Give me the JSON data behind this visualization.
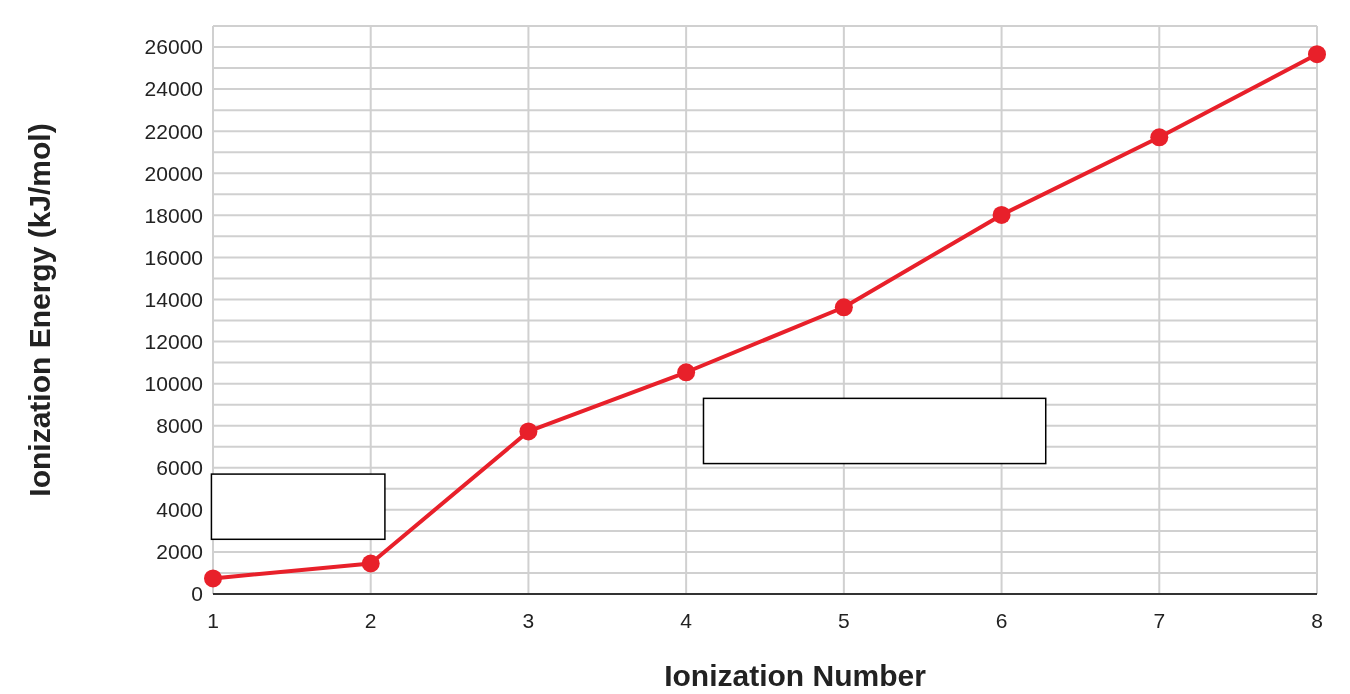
{
  "chart_data": {
    "type": "line",
    "xlabel": "Ionization Number",
    "ylabel": "Ionization Energy (kJ/mol)",
    "x": [
      1,
      2,
      3,
      4,
      5,
      6,
      7,
      8
    ],
    "series": [
      {
        "color": "#e8202a",
        "values": [
          740,
          1450,
          7730,
          10540,
          13630,
          18020,
          21710,
          25660
        ]
      }
    ],
    "xlim": [
      1,
      8
    ],
    "xticks": [
      1,
      2,
      3,
      4,
      5,
      6,
      7,
      8
    ],
    "ylim": [
      0,
      27000
    ],
    "yticks": [
      0,
      {
        "value": 1000,
        "label": null
      },
      2000,
      {
        "value": 3000,
        "label": null
      },
      4000,
      {
        "value": 5000,
        "label": null
      },
      6000,
      {
        "value": 7000,
        "label": null
      },
      8000,
      {
        "value": 9000,
        "label": null
      },
      10000,
      {
        "value": 11000,
        "label": null
      },
      12000,
      {
        "value": 13000,
        "label": null
      },
      14000,
      {
        "value": 15000,
        "label": null
      },
      16000,
      {
        "value": 17000,
        "label": null
      },
      18000,
      {
        "value": 19000,
        "label": null
      },
      20000,
      {
        "value": 21000,
        "label": null
      },
      22000,
      {
        "value": 23000,
        "label": null
      },
      24000,
      {
        "value": 25000,
        "label": null
      },
      26000,
      {
        "value": 27000,
        "label": null
      }
    ],
    "grid": true,
    "marker": "circle",
    "line_style": "solid"
  }
}
